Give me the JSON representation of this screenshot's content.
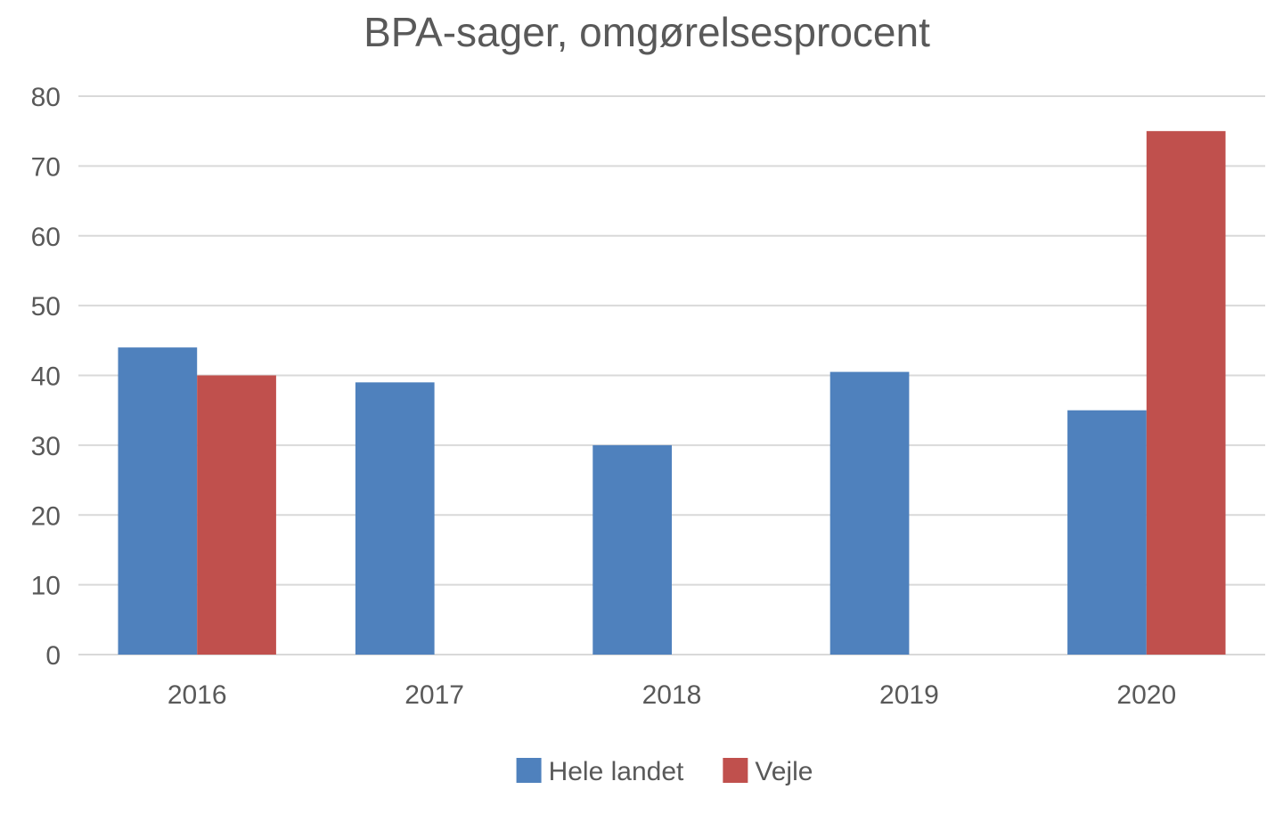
{
  "chart_data": {
    "type": "bar",
    "title": "BPA-sager, omgørelsesprocent",
    "xlabel": "",
    "ylabel": "",
    "categories": [
      "2016",
      "2017",
      "2018",
      "2019",
      "2020"
    ],
    "series": [
      {
        "name": "Hele landet",
        "color": "#4f81bd",
        "values": [
          44,
          39,
          30,
          40.5,
          35
        ]
      },
      {
        "name": "Vejle",
        "color": "#c0504d",
        "values": [
          40,
          null,
          null,
          null,
          75
        ]
      }
    ],
    "ylim": [
      0,
      80
    ],
    "yticks": [
      0,
      10,
      20,
      30,
      40,
      50,
      60,
      70,
      80
    ],
    "grid": true,
    "legend_position": "bottom"
  }
}
